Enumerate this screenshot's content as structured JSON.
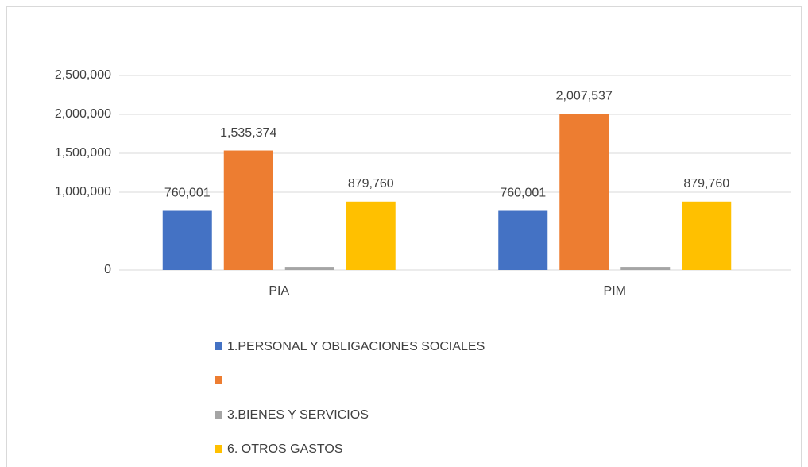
{
  "chart_data": {
    "type": "bar",
    "categories": [
      "PIA",
      "PIM"
    ],
    "series": [
      {
        "name": "1.PERSONAL Y OBLIGACIONES SOCIALES",
        "color": "#4472c4",
        "values": [
          760001,
          760001
        ],
        "value_labels": [
          "760,001",
          "760,001"
        ]
      },
      {
        "color": "#ed7d31",
        "values": [
          1535374,
          2007537
        ],
        "value_labels": [
          "1,535,374",
          "2,007,537"
        ]
      },
      {
        "name": "3.BIENES Y SERVICIOS",
        "color": "#a5a5a5",
        "values": [
          40000,
          40000
        ]
      },
      {
        "name": "6. OTROS GASTOS",
        "color": "#ffc000",
        "values": [
          879760,
          879760
        ],
        "value_labels": [
          "879,760",
          "879,760"
        ]
      }
    ],
    "ylim": [
      0,
      2500000
    ],
    "yticks": [
      {
        "value": 0,
        "label": "0"
      },
      {
        "value": 1000000,
        "label": "1,000,000"
      },
      {
        "value": 1500000,
        "label": "1,500,000"
      },
      {
        "value": 2000000,
        "label": "2,000,000"
      },
      {
        "value": 2500000,
        "label": "2,500,000"
      }
    ],
    "grid": true,
    "legend": "bottom"
  }
}
